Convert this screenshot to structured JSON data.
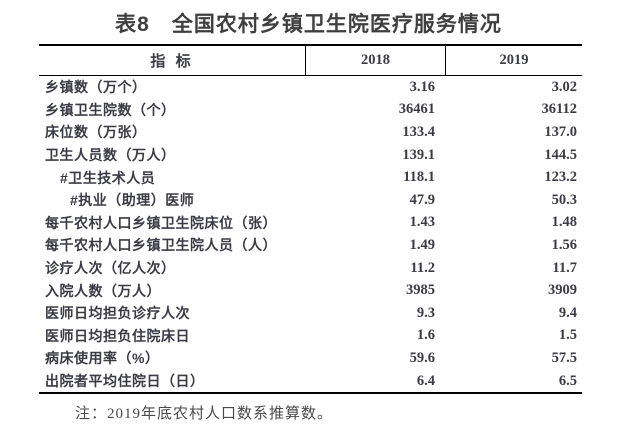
{
  "title": "表8　全国农村乡镇卫生院医疗服务情况",
  "table": {
    "columns": [
      "指 标",
      "2018",
      "2019"
    ],
    "rows": [
      {
        "label": "乡镇数（万个）",
        "indent": 0,
        "v2018": "3.16",
        "v2019": "3.02"
      },
      {
        "label": "乡镇卫生院数（个）",
        "indent": 0,
        "v2018": "36461",
        "v2019": "36112"
      },
      {
        "label": "床位数（万张）",
        "indent": 0,
        "v2018": "133.4",
        "v2019": "137.0"
      },
      {
        "label": "卫生人员数（万人）",
        "indent": 0,
        "v2018": "139.1",
        "v2019": "144.5"
      },
      {
        "label": "#卫生技术人员",
        "indent": 1,
        "v2018": "118.1",
        "v2019": "123.2"
      },
      {
        "label": "#执业（助理）医师",
        "indent": 2,
        "v2018": "47.9",
        "v2019": "50.3"
      },
      {
        "label": "每千农村人口乡镇卫生院床位（张）",
        "indent": 0,
        "v2018": "1.43",
        "v2019": "1.48"
      },
      {
        "label": "每千农村人口乡镇卫生院人员（人）",
        "indent": 0,
        "v2018": "1.49",
        "v2019": "1.56"
      },
      {
        "label": "诊疗人次（亿人次）",
        "indent": 0,
        "v2018": "11.2",
        "v2019": "11.7"
      },
      {
        "label": "入院人数（万人）",
        "indent": 0,
        "v2018": "3985",
        "v2019": "3909"
      },
      {
        "label": "医师日均担负诊疗人次",
        "indent": 0,
        "v2018": "9.3",
        "v2019": "9.4"
      },
      {
        "label": "医师日均担负住院床日",
        "indent": 0,
        "v2018": "1.6",
        "v2019": "1.5"
      },
      {
        "label": "病床使用率（%）",
        "indent": 0,
        "v2018": "59.6",
        "v2019": "57.5"
      },
      {
        "label": "出院者平均住院日（日）",
        "indent": 0,
        "v2018": "6.4",
        "v2019": "6.5"
      }
    ]
  },
  "note": "注：2019年底农村人口数系推算数。",
  "colors": {
    "text": "#3b3b45",
    "title": "#3f3f3f",
    "border": "#000000",
    "note": "#4a4a4a",
    "background": "#ffffff"
  }
}
